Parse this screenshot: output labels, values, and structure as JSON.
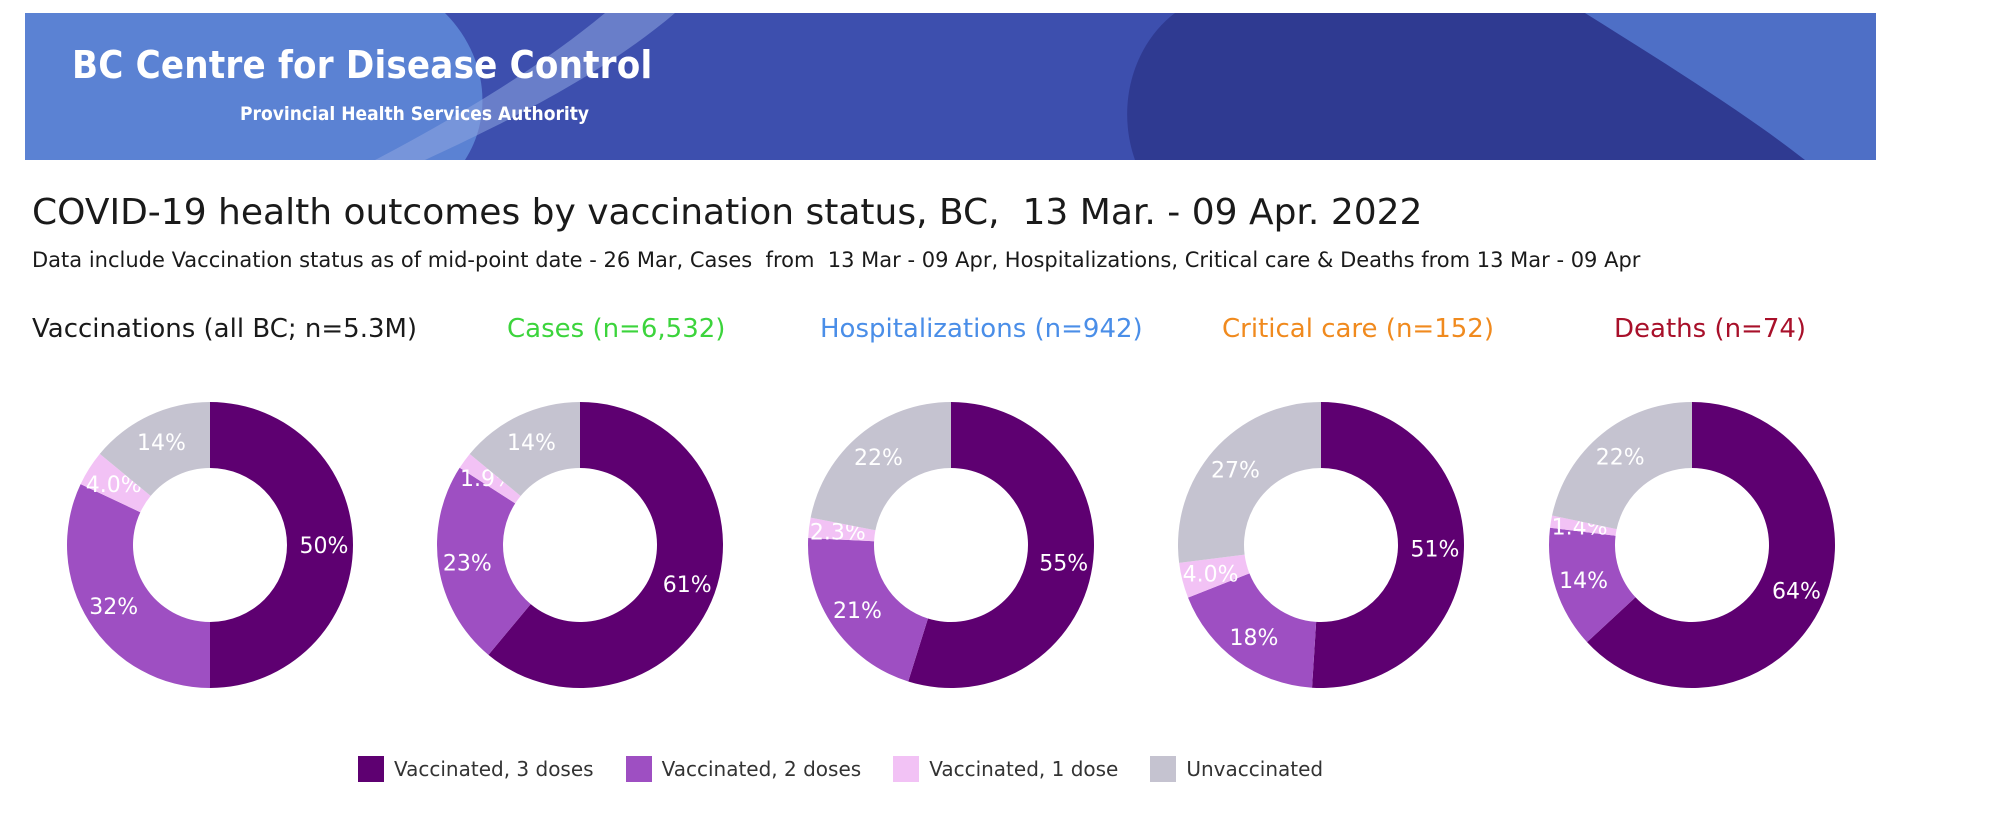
{
  "header": {
    "org_name": "BC Centre for Disease Control",
    "org_subtitle": "Provincial Health Services Authority"
  },
  "page": {
    "title": "COVID-19 health outcomes by vaccination status, BC,  13 Mar. - 09 Apr. 2022",
    "subtitle": "Data include Vaccination status as of mid-point date - 26 Mar, Cases  from  13 Mar - 09 Apr, Hospitalizations, Critical care & Deaths from 13 Mar - 09 Apr"
  },
  "colors": {
    "vacc3": "#5e0071",
    "vacc2": "#9e4fc2",
    "vacc1": "#f2c2f5",
    "unvacc": "#c5c3d0",
    "banner_light": "#5b82d3",
    "banner_mid": "#3d4fae",
    "banner_dark": "#2f3a91"
  },
  "legend": [
    {
      "label": "Vaccinated, 3 doses",
      "color": "#5e0071"
    },
    {
      "label": "Vaccinated, 2 doses",
      "color": "#9e4fc2"
    },
    {
      "label": "Vaccinated, 1 dose",
      "color": "#f2c2f5"
    },
    {
      "label": "Unvaccinated",
      "color": "#c5c3d0"
    }
  ],
  "chart_data": [
    {
      "type": "pie",
      "variant": "donut",
      "title": "Vaccinations (all BC; n=5.3M)",
      "title_color": "#1a1a1a",
      "categories": [
        "Vaccinated, 3 doses",
        "Vaccinated, 2 doses",
        "Vaccinated, 1 dose",
        "Unvaccinated"
      ],
      "values": [
        50,
        32,
        4.0,
        14
      ],
      "labels": [
        "50%",
        "32%",
        "4.0%",
        "14%"
      ]
    },
    {
      "type": "pie",
      "variant": "donut",
      "title": "Cases (n=6,532)",
      "title_color": "#3cd43c",
      "categories": [
        "Vaccinated, 3 doses",
        "Vaccinated, 2 doses",
        "Vaccinated, 1 dose",
        "Unvaccinated"
      ],
      "values": [
        61,
        23,
        1.9,
        14
      ],
      "labels": [
        "61%",
        "23%",
        "1.9%",
        "14%"
      ]
    },
    {
      "type": "pie",
      "variant": "donut",
      "title": "Hospitalizations (n=942)",
      "title_color": "#4a8ee8",
      "categories": [
        "Vaccinated, 3 doses",
        "Vaccinated, 2 doses",
        "Vaccinated, 1 dose",
        "Unvaccinated"
      ],
      "values": [
        55,
        21,
        2.3,
        22
      ],
      "labels": [
        "55%",
        "21%",
        "2.3%",
        "22%"
      ]
    },
    {
      "type": "pie",
      "variant": "donut",
      "title": "Critical care (n=152)",
      "title_color": "#f08a1e",
      "categories": [
        "Vaccinated, 3 doses",
        "Vaccinated, 2 doses",
        "Vaccinated, 1 dose",
        "Unvaccinated"
      ],
      "values": [
        51,
        18,
        4.0,
        27
      ],
      "labels": [
        "51%",
        "18%",
        "4.0%",
        "27%"
      ]
    },
    {
      "type": "pie",
      "variant": "donut",
      "title": "Deaths (n=74)",
      "title_color": "#a8102a",
      "categories": [
        "Vaccinated, 3 doses",
        "Vaccinated, 2 doses",
        "Vaccinated, 1 dose",
        "Unvaccinated"
      ],
      "values": [
        64,
        14,
        1.4,
        22
      ],
      "labels": [
        "64%",
        "14%",
        "1.4%",
        "22%"
      ]
    }
  ]
}
